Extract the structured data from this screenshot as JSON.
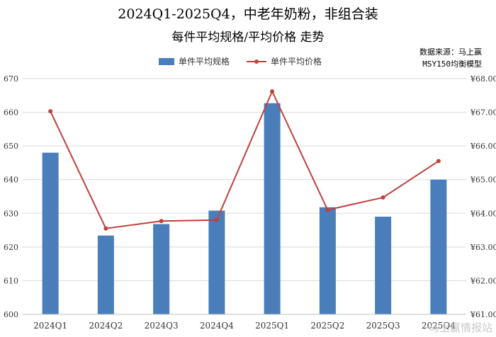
{
  "chart_data": {
    "type": "bar",
    "title": "2024Q1-2025Q4，中老年奶粉，非组合装",
    "subtitle": "每件平均规格/平均价格 走势",
    "source_line1": "数据来源：马上赢",
    "source_line2": "MSY150均衡模型",
    "watermark": "马上赢情报站",
    "categories": [
      "2024Q1",
      "2024Q2",
      "2024Q3",
      "2024Q4",
      "2025Q1",
      "2025Q2",
      "2025Q3",
      "2025Q4"
    ],
    "series": [
      {
        "name": "单件平均规格",
        "type": "bar",
        "axis": "left",
        "color": "#4a7ebb",
        "values": [
          648,
          623.4,
          626.8,
          630.8,
          662.7,
          631.8,
          629.0,
          640.0
        ]
      },
      {
        "name": "单件平均价格",
        "type": "line",
        "axis": "right",
        "color": "#c0403c",
        "values": [
          67.03,
          63.55,
          63.77,
          63.8,
          67.62,
          64.1,
          64.47,
          65.55
        ]
      }
    ],
    "left_axis": {
      "min": 600,
      "max": 670,
      "step": 10,
      "ticks": [
        "600",
        "610",
        "620",
        "630",
        "640",
        "650",
        "660",
        "670"
      ]
    },
    "right_axis": {
      "min": 61,
      "max": 68,
      "step": 1,
      "ticks": [
        "¥61.00",
        "¥62.00",
        "¥63.00",
        "¥64.00",
        "¥65.00",
        "¥66.00",
        "¥67.00",
        "¥68.00"
      ]
    },
    "grid": true,
    "legend_position": "top-center"
  }
}
